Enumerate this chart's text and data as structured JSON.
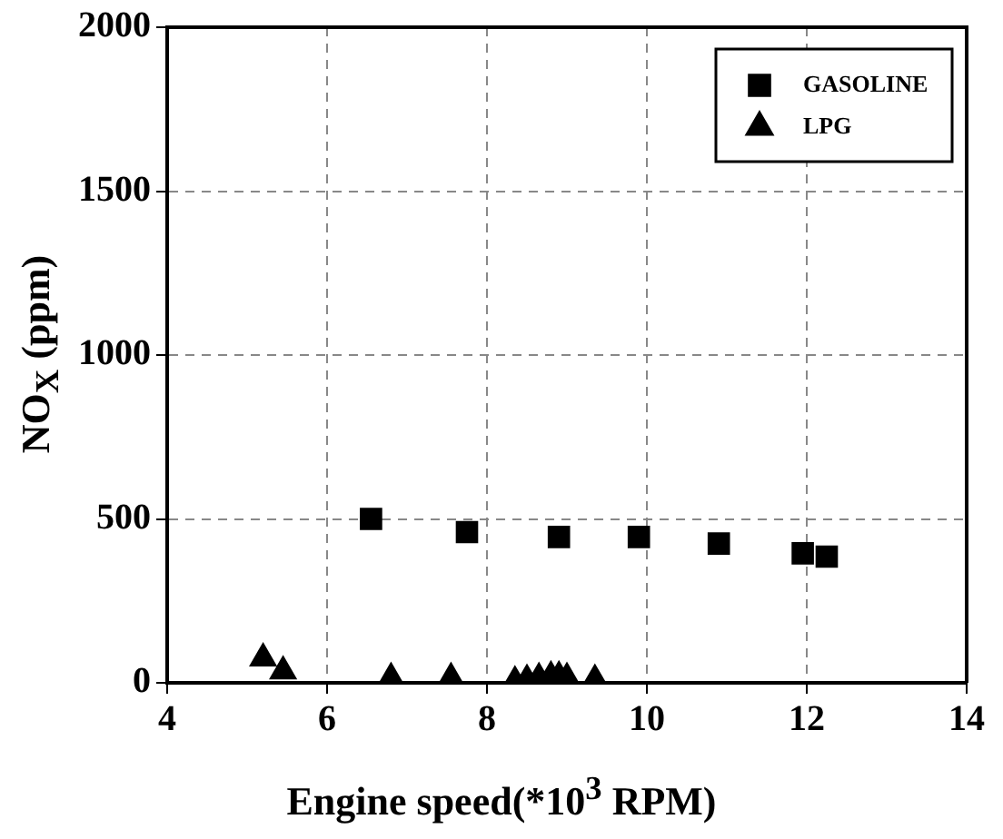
{
  "chart_data": {
    "type": "scatter",
    "xlabel": "Engine speed(*10$^{3}$ RPM)",
    "ylabel": "NO$_{X}$ (ppm)",
    "xlim": [
      4,
      14
    ],
    "xticks": [
      4,
      6,
      8,
      10,
      12,
      14
    ],
    "ylim": [
      0,
      2000
    ],
    "yticks": [
      0,
      500,
      1000,
      1500,
      2000
    ],
    "grid": true,
    "legend": "top right",
    "series": [
      {
        "name": "GASOLINE",
        "color": "#000000",
        "marker": "square",
        "x": [
          6.55,
          7.75,
          8.9,
          9.9,
          10.9,
          11.95,
          12.25
        ],
        "values": [
          500,
          460,
          445,
          445,
          425,
          395,
          385
        ]
      },
      {
        "name": "LPG",
        "color": "#000000",
        "marker": "triangle",
        "x": [
          5.2,
          5.45,
          6.8,
          7.55,
          8.35,
          8.5,
          8.65,
          8.8,
          8.9,
          9.0,
          9.35
        ],
        "values": [
          75,
          35,
          15,
          15,
          5,
          10,
          15,
          20,
          20,
          15,
          10
        ]
      }
    ]
  }
}
